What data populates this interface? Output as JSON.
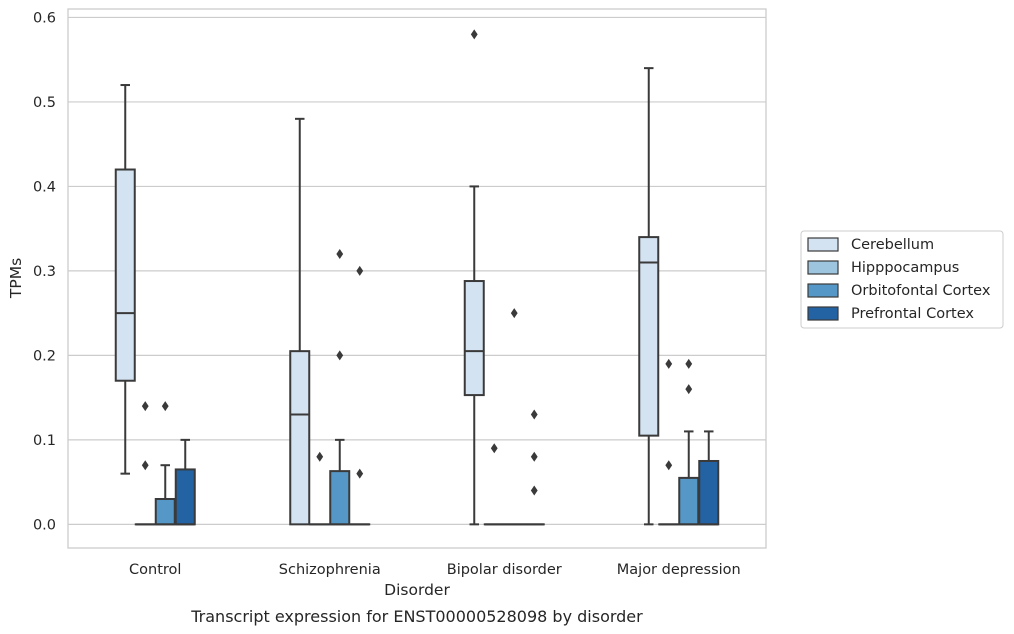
{
  "chart_data": {
    "type": "box",
    "caption": "Transcript expression for ENST00000528098 by disorder",
    "xlabel": "Disorder",
    "ylabel": "TPMs",
    "ylim": [
      -0.028,
      0.61
    ],
    "yticks": [
      "0.0",
      "0.1",
      "0.2",
      "0.3",
      "0.4",
      "0.5",
      "0.6"
    ],
    "ytick_values": [
      0.0,
      0.1,
      0.2,
      0.3,
      0.4,
      0.5,
      0.6
    ],
    "grid": "horizontal",
    "legend_position": "right",
    "categories": [
      "Control",
      "Schizophrenia",
      "Bipolar disorder",
      "Major depression"
    ],
    "series": [
      {
        "name": "Cerebellum",
        "color": "#d4e3f2",
        "boxes": [
          {
            "q1": 0.17,
            "median": 0.25,
            "q3": 0.42,
            "whislo": 0.06,
            "whishi": 0.52,
            "fliers": []
          },
          {
            "q1": 0.0,
            "median": 0.13,
            "q3": 0.205,
            "whislo": 0.0,
            "whishi": 0.48,
            "fliers": []
          },
          {
            "q1": 0.153,
            "median": 0.205,
            "q3": 0.288,
            "whislo": 0.0,
            "whishi": 0.4,
            "fliers": [
              0.58
            ]
          },
          {
            "q1": 0.105,
            "median": 0.31,
            "q3": 0.34,
            "whislo": 0.0,
            "whishi": 0.54,
            "fliers": []
          }
        ]
      },
      {
        "name": "Hipppocampus",
        "color": "#9dc5e0",
        "boxes": [
          {
            "q1": 0.0,
            "median": 0.0,
            "q3": 0.0,
            "whislo": 0.0,
            "whishi": 0.0,
            "fliers": [
              0.07,
              0.14
            ]
          },
          {
            "q1": 0.0,
            "median": 0.0,
            "q3": 0.0,
            "whislo": 0.0,
            "whishi": 0.0,
            "fliers": [
              0.08
            ]
          },
          {
            "q1": 0.0,
            "median": 0.0,
            "q3": 0.0,
            "whislo": 0.0,
            "whishi": 0.0,
            "fliers": [
              0.09
            ]
          },
          {
            "q1": 0.0,
            "median": 0.0,
            "q3": 0.0,
            "whislo": 0.0,
            "whishi": 0.0,
            "fliers": [
              0.07,
              0.19
            ]
          }
        ]
      },
      {
        "name": "Orbitofontal Cortex",
        "color": "#5597c6",
        "boxes": [
          {
            "q1": 0.0,
            "median": 0.0,
            "q3": 0.03,
            "whislo": 0.0,
            "whishi": 0.07,
            "fliers": [
              0.14
            ]
          },
          {
            "q1": 0.0,
            "median": 0.0,
            "q3": 0.063,
            "whislo": 0.0,
            "whishi": 0.1,
            "fliers": [
              0.2,
              0.32
            ]
          },
          {
            "q1": 0.0,
            "median": 0.0,
            "q3": 0.0,
            "whislo": 0.0,
            "whishi": 0.0,
            "fliers": [
              0.25
            ]
          },
          {
            "q1": 0.0,
            "median": 0.0,
            "q3": 0.055,
            "whislo": 0.0,
            "whishi": 0.11,
            "fliers": [
              0.16,
              0.19
            ]
          }
        ]
      },
      {
        "name": "Prefrontal Cortex",
        "color": "#2363a4",
        "boxes": [
          {
            "q1": 0.0,
            "median": 0.0,
            "q3": 0.065,
            "whislo": 0.0,
            "whishi": 0.1,
            "fliers": []
          },
          {
            "q1": 0.0,
            "median": 0.0,
            "q3": 0.0,
            "whislo": 0.0,
            "whishi": 0.0,
            "fliers": [
              0.06,
              0.3
            ]
          },
          {
            "q1": 0.0,
            "median": 0.0,
            "q3": 0.0,
            "whislo": 0.0,
            "whishi": 0.0,
            "fliers": [
              0.04,
              0.08,
              0.13
            ]
          },
          {
            "q1": 0.0,
            "median": 0.0,
            "q3": 0.075,
            "whislo": 0.0,
            "whishi": 0.11,
            "fliers": []
          }
        ]
      }
    ]
  }
}
